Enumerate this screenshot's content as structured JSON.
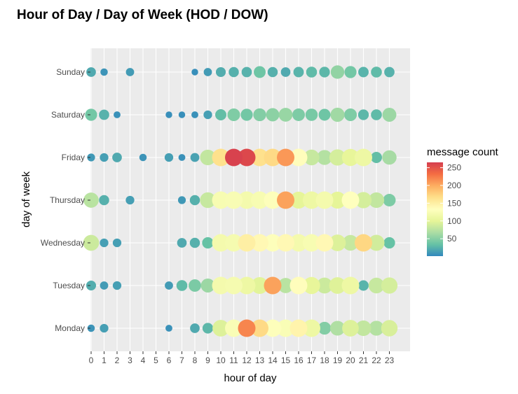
{
  "chart_data": {
    "type": "scatter",
    "title": "Hour of Day / Day of Week (HOD / DOW)",
    "xlabel": "hour of day",
    "ylabel": "day of week",
    "x_ticks": [
      0,
      1,
      2,
      3,
      4,
      5,
      6,
      7,
      8,
      9,
      10,
      11,
      12,
      13,
      14,
      15,
      16,
      17,
      18,
      19,
      20,
      21,
      22,
      23
    ],
    "x_tick_labels": [
      "0",
      "1",
      "2",
      "3",
      "4",
      "5",
      "6",
      "7",
      "8",
      "9",
      "10",
      "11",
      "12",
      "13",
      "14",
      "15",
      "16",
      "17",
      "18",
      "19",
      "20",
      "21",
      "22",
      "23"
    ],
    "xlim": [
      0,
      24.5
    ],
    "days": [
      "Monday",
      "Tuesday",
      "Wednesday",
      "Thursday",
      "Friday",
      "Saturday",
      "Sunday"
    ],
    "grid": true,
    "legend": {
      "title": "message count",
      "placement": "right",
      "ticks": [
        50,
        100,
        150,
        200,
        250
      ],
      "tick_labels": [
        "50",
        "100",
        "150",
        "200",
        "250"
      ],
      "range": [
        1,
        265
      ],
      "colormap": "Spectral (reversed)",
      "colors": [
        "#3288bd",
        "#66c2a5",
        "#abdda4",
        "#e6f598",
        "#ffffbf",
        "#fee08b",
        "#fdae61",
        "#f46d43",
        "#d53e4f"
      ]
    },
    "size_encodes": "message count",
    "points": [
      {
        "day": "Sunday",
        "hour": 0,
        "count": 20
      },
      {
        "day": "Sunday",
        "hour": 1,
        "count": 8
      },
      {
        "day": "Sunday",
        "hour": 3,
        "count": 12
      },
      {
        "day": "Sunday",
        "hour": 8,
        "count": 5
      },
      {
        "day": "Sunday",
        "hour": 9,
        "count": 12
      },
      {
        "day": "Sunday",
        "hour": 10,
        "count": 22
      },
      {
        "day": "Sunday",
        "hour": 11,
        "count": 24
      },
      {
        "day": "Sunday",
        "hour": 12,
        "count": 25
      },
      {
        "day": "Sunday",
        "hour": 13,
        "count": 38
      },
      {
        "day": "Sunday",
        "hour": 14,
        "count": 24
      },
      {
        "day": "Sunday",
        "hour": 15,
        "count": 20
      },
      {
        "day": "Sunday",
        "hour": 16,
        "count": 26
      },
      {
        "day": "Sunday",
        "hour": 17,
        "count": 30
      },
      {
        "day": "Sunday",
        "hour": 18,
        "count": 28
      },
      {
        "day": "Sunday",
        "hour": 19,
        "count": 55
      },
      {
        "day": "Sunday",
        "hour": 20,
        "count": 40
      },
      {
        "day": "Sunday",
        "hour": 21,
        "count": 26
      },
      {
        "day": "Sunday",
        "hour": 22,
        "count": 30
      },
      {
        "day": "Sunday",
        "hour": 23,
        "count": 25
      },
      {
        "day": "Saturday",
        "hour": 0,
        "count": 40
      },
      {
        "day": "Saturday",
        "hour": 1,
        "count": 25
      },
      {
        "day": "Saturday",
        "hour": 2,
        "count": 6
      },
      {
        "day": "Saturday",
        "hour": 6,
        "count": 5
      },
      {
        "day": "Saturday",
        "hour": 7,
        "count": 5
      },
      {
        "day": "Saturday",
        "hour": 8,
        "count": 6
      },
      {
        "day": "Saturday",
        "hour": 9,
        "count": 14
      },
      {
        "day": "Saturday",
        "hour": 10,
        "count": 32
      },
      {
        "day": "Saturday",
        "hour": 11,
        "count": 46
      },
      {
        "day": "Saturday",
        "hour": 12,
        "count": 40
      },
      {
        "day": "Saturday",
        "hour": 13,
        "count": 48
      },
      {
        "day": "Saturday",
        "hour": 14,
        "count": 52
      },
      {
        "day": "Saturday",
        "hour": 15,
        "count": 58
      },
      {
        "day": "Saturday",
        "hour": 16,
        "count": 45
      },
      {
        "day": "Saturday",
        "hour": 17,
        "count": 42
      },
      {
        "day": "Saturday",
        "hour": 18,
        "count": 38
      },
      {
        "day": "Saturday",
        "hour": 19,
        "count": 62
      },
      {
        "day": "Saturday",
        "hour": 20,
        "count": 46
      },
      {
        "day": "Saturday",
        "hour": 21,
        "count": 28
      },
      {
        "day": "Saturday",
        "hour": 22,
        "count": 30
      },
      {
        "day": "Saturday",
        "hour": 23,
        "count": 60
      },
      {
        "day": "Friday",
        "hour": 0,
        "count": 10
      },
      {
        "day": "Friday",
        "hour": 1,
        "count": 14
      },
      {
        "day": "Friday",
        "hour": 2,
        "count": 20
      },
      {
        "day": "Friday",
        "hour": 4,
        "count": 8
      },
      {
        "day": "Friday",
        "hour": 6,
        "count": 14
      },
      {
        "day": "Friday",
        "hour": 7,
        "count": 6
      },
      {
        "day": "Friday",
        "hour": 8,
        "count": 16
      },
      {
        "day": "Friday",
        "hour": 9,
        "count": 80
      },
      {
        "day": "Friday",
        "hour": 10,
        "count": 165
      },
      {
        "day": "Friday",
        "hour": 11,
        "count": 262
      },
      {
        "day": "Friday",
        "hour": 12,
        "count": 258
      },
      {
        "day": "Friday",
        "hour": 13,
        "count": 165
      },
      {
        "day": "Friday",
        "hour": 14,
        "count": 170
      },
      {
        "day": "Friday",
        "hour": 15,
        "count": 210
      },
      {
        "day": "Friday",
        "hour": 16,
        "count": 135
      },
      {
        "day": "Friday",
        "hour": 17,
        "count": 82
      },
      {
        "day": "Friday",
        "hour": 18,
        "count": 72
      },
      {
        "day": "Friday",
        "hour": 19,
        "count": 90
      },
      {
        "day": "Friday",
        "hour": 20,
        "count": 102
      },
      {
        "day": "Friday",
        "hour": 21,
        "count": 110
      },
      {
        "day": "Friday",
        "hour": 22,
        "count": 32
      },
      {
        "day": "Friday",
        "hour": 23,
        "count": 65
      },
      {
        "day": "Thursday",
        "hour": 0,
        "count": 75
      },
      {
        "day": "Thursday",
        "hour": 1,
        "count": 24
      },
      {
        "day": "Thursday",
        "hour": 3,
        "count": 14
      },
      {
        "day": "Thursday",
        "hour": 7,
        "count": 10
      },
      {
        "day": "Thursday",
        "hour": 8,
        "count": 24
      },
      {
        "day": "Thursday",
        "hour": 9,
        "count": 82
      },
      {
        "day": "Thursday",
        "hour": 10,
        "count": 122
      },
      {
        "day": "Thursday",
        "hour": 11,
        "count": 124
      },
      {
        "day": "Thursday",
        "hour": 12,
        "count": 118
      },
      {
        "day": "Thursday",
        "hour": 13,
        "count": 122
      },
      {
        "day": "Thursday",
        "hour": 14,
        "count": 130
      },
      {
        "day": "Thursday",
        "hour": 15,
        "count": 205
      },
      {
        "day": "Thursday",
        "hour": 16,
        "count": 100
      },
      {
        "day": "Thursday",
        "hour": 17,
        "count": 110
      },
      {
        "day": "Thursday",
        "hour": 18,
        "count": 118
      },
      {
        "day": "Thursday",
        "hour": 19,
        "count": 100
      },
      {
        "day": "Thursday",
        "hour": 20,
        "count": 132
      },
      {
        "day": "Thursday",
        "hour": 21,
        "count": 90
      },
      {
        "day": "Thursday",
        "hour": 22,
        "count": 80
      },
      {
        "day": "Thursday",
        "hour": 23,
        "count": 45
      },
      {
        "day": "Wednesday",
        "hour": 0,
        "count": 85
      },
      {
        "day": "Wednesday",
        "hour": 1,
        "count": 14
      },
      {
        "day": "Wednesday",
        "hour": 2,
        "count": 14
      },
      {
        "day": "Wednesday",
        "hour": 7,
        "count": 20
      },
      {
        "day": "Wednesday",
        "hour": 8,
        "count": 24
      },
      {
        "day": "Wednesday",
        "hour": 9,
        "count": 34
      },
      {
        "day": "Wednesday",
        "hour": 10,
        "count": 118
      },
      {
        "day": "Wednesday",
        "hour": 11,
        "count": 120
      },
      {
        "day": "Wednesday",
        "hour": 12,
        "count": 150
      },
      {
        "day": "Wednesday",
        "hour": 13,
        "count": 140
      },
      {
        "day": "Wednesday",
        "hour": 14,
        "count": 130
      },
      {
        "day": "Wednesday",
        "hour": 15,
        "count": 140
      },
      {
        "day": "Wednesday",
        "hour": 16,
        "count": 118
      },
      {
        "day": "Wednesday",
        "hour": 17,
        "count": 122
      },
      {
        "day": "Wednesday",
        "hour": 18,
        "count": 140
      },
      {
        "day": "Wednesday",
        "hour": 19,
        "count": 95
      },
      {
        "day": "Wednesday",
        "hour": 20,
        "count": 82
      },
      {
        "day": "Wednesday",
        "hour": 21,
        "count": 172
      },
      {
        "day": "Wednesday",
        "hour": 22,
        "count": 88
      },
      {
        "day": "Wednesday",
        "hour": 23,
        "count": 34
      },
      {
        "day": "Tuesday",
        "hour": 0,
        "count": 22
      },
      {
        "day": "Tuesday",
        "hour": 1,
        "count": 12
      },
      {
        "day": "Tuesday",
        "hour": 2,
        "count": 14
      },
      {
        "day": "Tuesday",
        "hour": 6,
        "count": 12
      },
      {
        "day": "Tuesday",
        "hour": 7,
        "count": 30
      },
      {
        "day": "Tuesday",
        "hour": 8,
        "count": 44
      },
      {
        "day": "Tuesday",
        "hour": 9,
        "count": 60
      },
      {
        "day": "Tuesday",
        "hour": 10,
        "count": 118
      },
      {
        "day": "Tuesday",
        "hour": 11,
        "count": 120
      },
      {
        "day": "Tuesday",
        "hour": 12,
        "count": 110
      },
      {
        "day": "Tuesday",
        "hour": 13,
        "count": 98
      },
      {
        "day": "Tuesday",
        "hour": 14,
        "count": 205
      },
      {
        "day": "Tuesday",
        "hour": 15,
        "count": 75
      },
      {
        "day": "Tuesday",
        "hour": 16,
        "count": 135
      },
      {
        "day": "Tuesday",
        "hour": 17,
        "count": 102
      },
      {
        "day": "Tuesday",
        "hour": 18,
        "count": 85
      },
      {
        "day": "Tuesday",
        "hour": 19,
        "count": 96
      },
      {
        "day": "Tuesday",
        "hour": 20,
        "count": 110
      },
      {
        "day": "Tuesday",
        "hour": 21,
        "count": 26
      },
      {
        "day": "Tuesday",
        "hour": 22,
        "count": 82
      },
      {
        "day": "Tuesday",
        "hour": 23,
        "count": 90
      },
      {
        "day": "Monday",
        "hour": 0,
        "count": 8
      },
      {
        "day": "Monday",
        "hour": 1,
        "count": 14
      },
      {
        "day": "Monday",
        "hour": 6,
        "count": 6
      },
      {
        "day": "Monday",
        "hour": 8,
        "count": 20
      },
      {
        "day": "Monday",
        "hour": 9,
        "count": 28
      },
      {
        "day": "Monday",
        "hour": 10,
        "count": 95
      },
      {
        "day": "Monday",
        "hour": 11,
        "count": 125
      },
      {
        "day": "Monday",
        "hour": 12,
        "count": 220
      },
      {
        "day": "Monday",
        "hour": 13,
        "count": 170
      },
      {
        "day": "Monday",
        "hour": 14,
        "count": 130
      },
      {
        "day": "Monday",
        "hour": 15,
        "count": 125
      },
      {
        "day": "Monday",
        "hour": 16,
        "count": 145
      },
      {
        "day": "Monday",
        "hour": 17,
        "count": 110
      },
      {
        "day": "Monday",
        "hour": 18,
        "count": 48
      },
      {
        "day": "Monday",
        "hour": 19,
        "count": 70
      },
      {
        "day": "Monday",
        "hour": 20,
        "count": 95
      },
      {
        "day": "Monday",
        "hour": 21,
        "count": 80
      },
      {
        "day": "Monday",
        "hour": 22,
        "count": 72
      },
      {
        "day": "Monday",
        "hour": 23,
        "count": 92
      }
    ]
  }
}
